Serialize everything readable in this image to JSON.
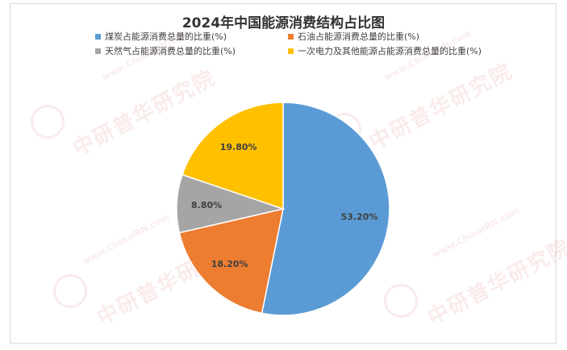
{
  "chart_data": {
    "type": "pie",
    "title": "2024年中国能源消费结构占比图",
    "categories": [
      "煤炭占能源消费总量的比重(%)",
      "石油占能源消费总量的比重(%)",
      "天然气占能源消费总量的比重(%)",
      "一次电力及其他能源占能源消费总量的比重(%)"
    ],
    "values": [
      53.2,
      18.2,
      8.8,
      19.8
    ],
    "labels": [
      "53.20%",
      "18.20%",
      "8.80%",
      "19.80%"
    ],
    "colors": [
      "#5b9bd5",
      "#ed7d31",
      "#a5a5a5",
      "#ffc000"
    ],
    "legend_position": "top",
    "start_angle": "12 o'clock, clockwise"
  },
  "watermark": {
    "url": "www.ChinaIRN.com",
    "name": "中研普华研究院",
    "logo": "CIRN"
  }
}
